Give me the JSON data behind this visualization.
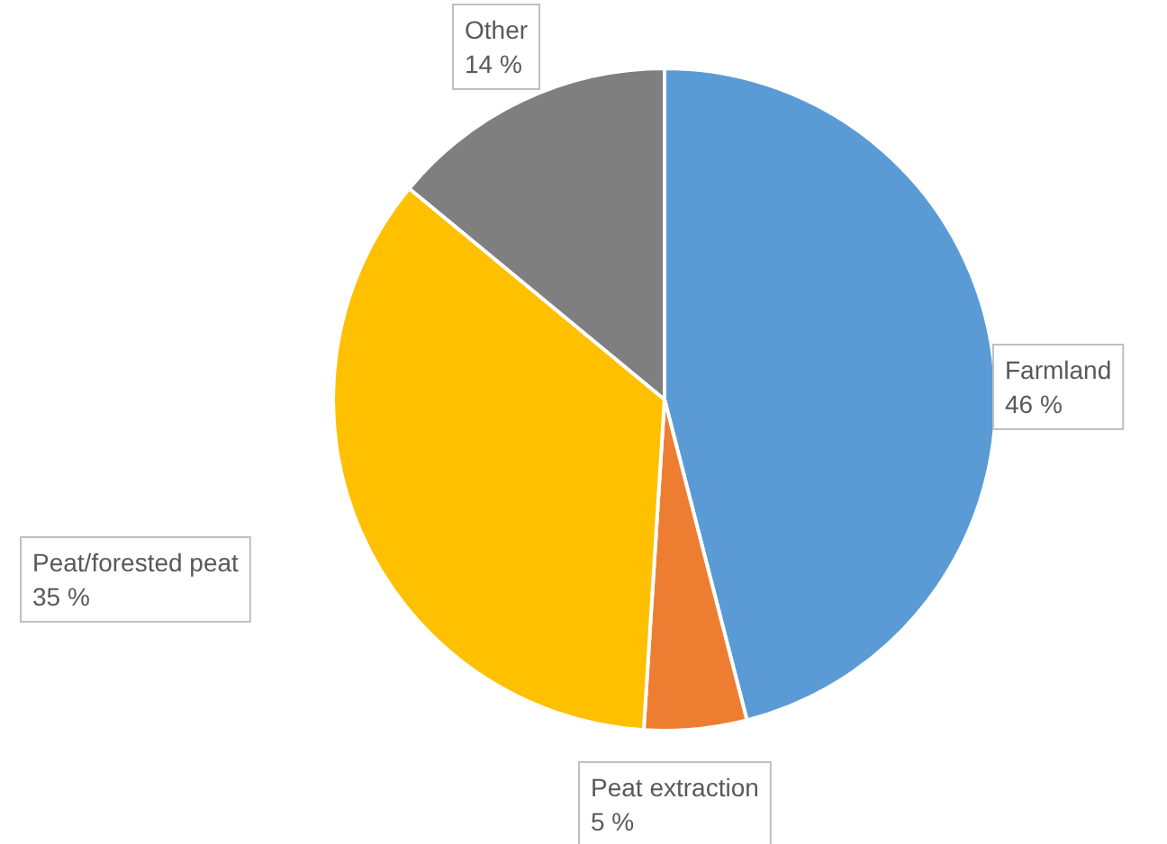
{
  "chart_data": {
    "type": "pie",
    "categories": [
      "Farmland",
      "Peat extraction",
      "Peat/forested peat",
      "Other"
    ],
    "values": [
      46,
      5,
      35,
      14
    ],
    "colors": [
      "#5b9bd5",
      "#ed7d31",
      "#ffc000",
      "#7f7f7f"
    ],
    "value_labels": [
      "46 %",
      "5 %",
      "35 %",
      "14 %"
    ],
    "legend": false
  }
}
